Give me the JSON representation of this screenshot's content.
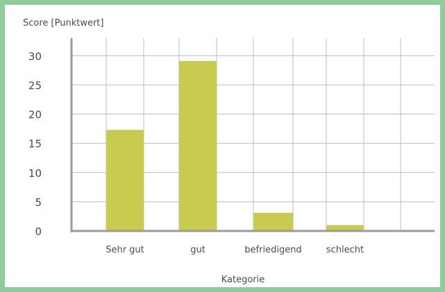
{
  "chart_data": {
    "type": "bar",
    "title": "",
    "ylabel": "Score [Punktwert]",
    "xlabel": "Kategorie",
    "categories": [
      "Sehr gut",
      "gut",
      "befriedigend",
      "schlecht"
    ],
    "values": [
      17.3,
      29.1,
      3.1,
      1.0
    ],
    "ylim": [
      0,
      33
    ],
    "yticks": [
      "0",
      "5",
      "10",
      "15",
      "20",
      "25",
      "30"
    ],
    "grid": true,
    "bar_color": "#c8cb4f",
    "border_color": "#8ecd9b"
  }
}
